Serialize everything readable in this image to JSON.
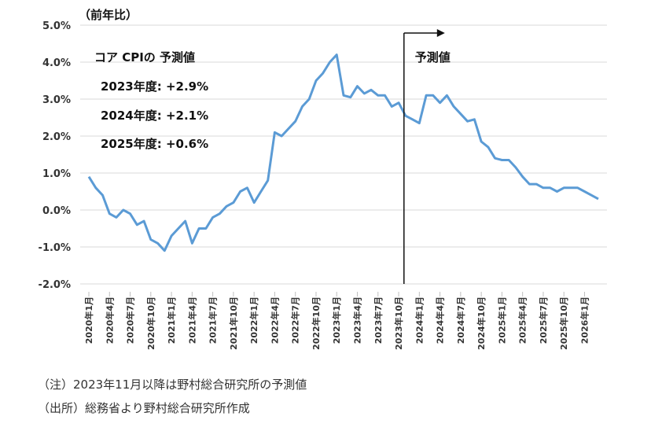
{
  "chart_data": {
    "type": "line",
    "unit_label": "（前年比）",
    "ylim": [
      -2.0,
      5.0
    ],
    "yticks": [
      "5.0%",
      "4.0%",
      "3.0%",
      "2.0%",
      "1.0%",
      "0.0%",
      "-1.0%",
      "-2.0%"
    ],
    "grid": true,
    "x_tick_labels": [
      "2020年1月",
      "2020年4月",
      "2020年7月",
      "2020年10月",
      "2021年1月",
      "2021年4月",
      "2021年7月",
      "2021年10月",
      "2022年1月",
      "2022年4月",
      "2022年7月",
      "2022年10月",
      "2023年1月",
      "2023年4月",
      "2023年7月",
      "2023年10月",
      "2024年1月",
      "2024年4月",
      "2024年7月",
      "2024年10月",
      "2025年1月",
      "2025年4月",
      "2025年7月",
      "2025年10月",
      "2026年1月"
    ],
    "series": [
      {
        "color": "#5b9bd5",
        "values": [
          0.9,
          0.6,
          0.4,
          -0.1,
          -0.2,
          0.0,
          -0.1,
          -0.4,
          -0.3,
          -0.8,
          -0.9,
          -1.1,
          -0.7,
          -0.5,
          -0.3,
          -0.9,
          -0.5,
          -0.5,
          -0.2,
          -0.1,
          0.1,
          0.2,
          0.5,
          0.6,
          0.2,
          0.5,
          0.8,
          2.1,
          2.0,
          2.2,
          2.4,
          2.8,
          3.0,
          3.5,
          3.7,
          4.0,
          4.2,
          3.1,
          3.05,
          3.35,
          3.15,
          3.25,
          3.1,
          3.1,
          2.8,
          2.9,
          2.55,
          2.45,
          2.35,
          3.1,
          3.1,
          2.9,
          3.1,
          2.8,
          2.6,
          2.4,
          2.45,
          1.85,
          1.7,
          1.4,
          1.35,
          1.35,
          1.15,
          0.9,
          0.7,
          0.7,
          0.6,
          0.6,
          0.5,
          0.6,
          0.6,
          0.6,
          0.5,
          0.4,
          0.3
        ]
      }
    ],
    "forecast_label": "予測値",
    "forecast_start_index": 46,
    "annotation": {
      "title": "コア CPIの 予測値",
      "lines": [
        "2023年度: +2.9%",
        "2024年度: +2.1%",
        "2025年度: +0.6%"
      ]
    }
  },
  "notes": {
    "note1": "（注）2023年11月以降は野村総合研究所の予測値",
    "note2": "（出所）総務省より野村総合研究所作成"
  }
}
